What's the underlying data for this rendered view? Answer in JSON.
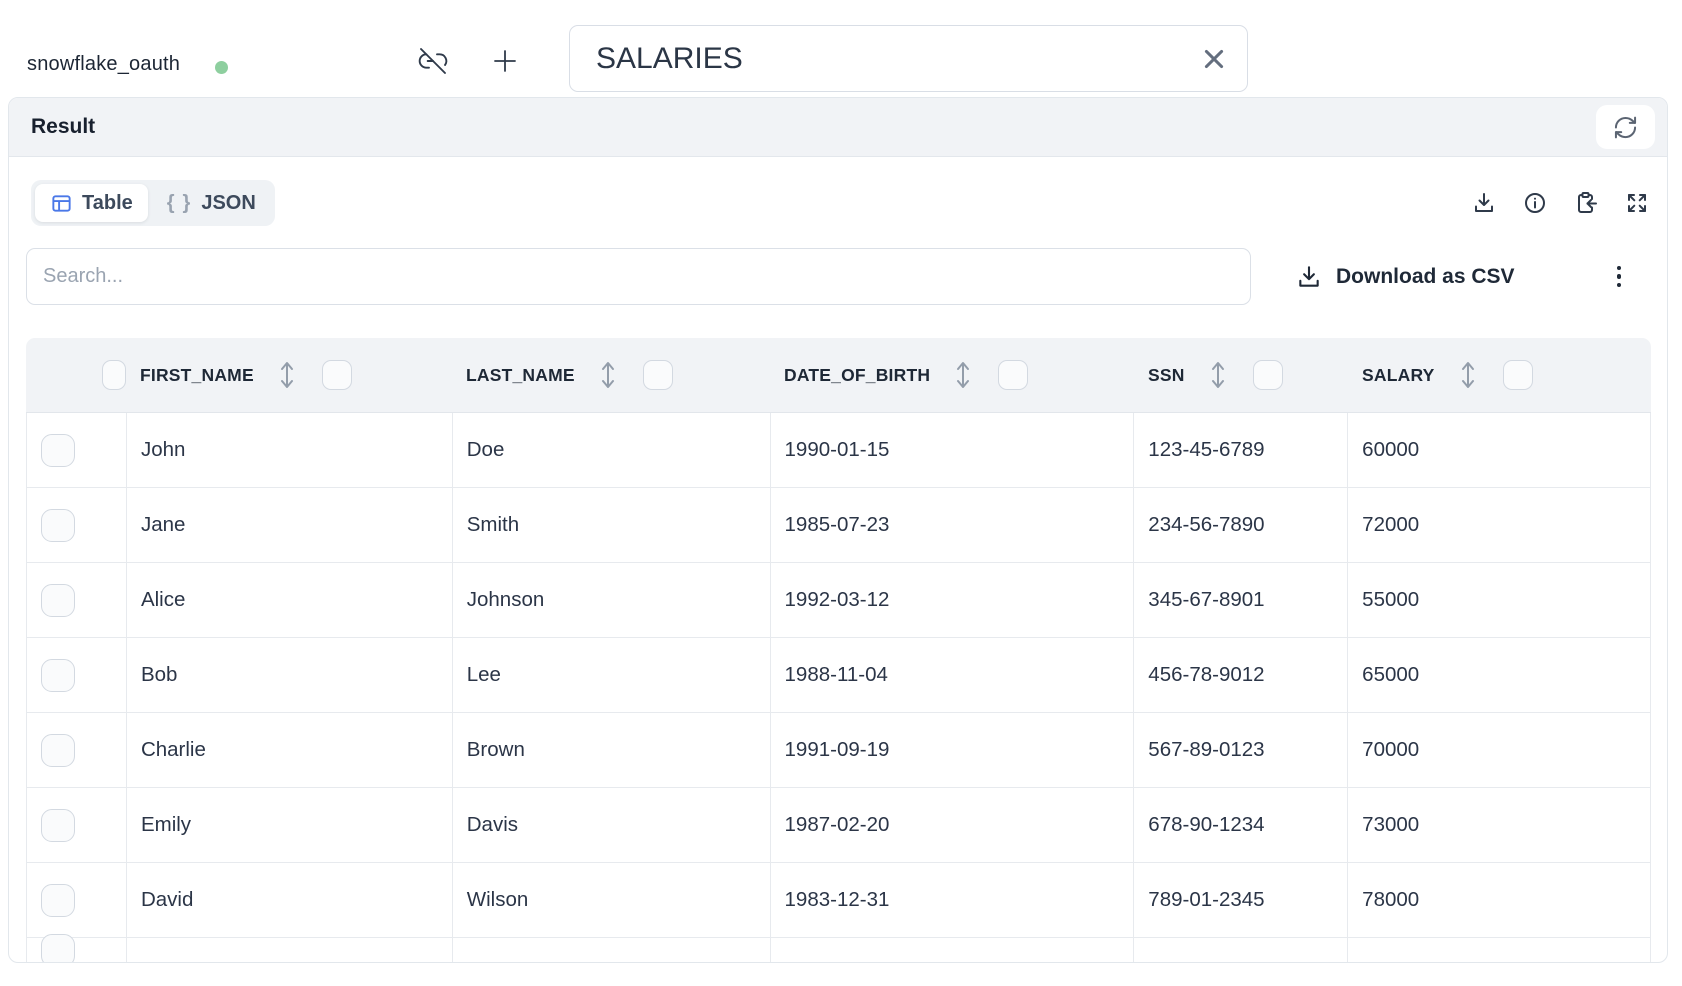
{
  "topbar": {
    "connection_name": "snowflake_oauth",
    "table_name_value": "SALARIES"
  },
  "result": {
    "title": "Result",
    "tab_table": "Table",
    "tab_json": "JSON",
    "search_placeholder": "Search...",
    "download_csv": "Download as CSV"
  },
  "table": {
    "columns": [
      "FIRST_NAME",
      "LAST_NAME",
      "DATE_OF_BIRTH",
      "SSN",
      "SALARY"
    ],
    "rows": [
      [
        "John",
        "Doe",
        "1990-01-15",
        "123-45-6789",
        "60000"
      ],
      [
        "Jane",
        "Smith",
        "1985-07-23",
        "234-56-7890",
        "72000"
      ],
      [
        "Alice",
        "Johnson",
        "1992-03-12",
        "345-67-8901",
        "55000"
      ],
      [
        "Bob",
        "Lee",
        "1988-11-04",
        "456-78-9012",
        "65000"
      ],
      [
        "Charlie",
        "Brown",
        "1991-09-19",
        "567-89-0123",
        "70000"
      ],
      [
        "Emily",
        "Davis",
        "1987-02-20",
        "678-90-1234",
        "73000"
      ],
      [
        "David",
        "Wilson",
        "1983-12-31",
        "789-01-2345",
        "78000"
      ]
    ]
  },
  "colors": {
    "accent_blue": "#4a78e8",
    "status_green": "#8ecf9f",
    "header_bg": "#f1f3f6",
    "border_light": "#e7eaee",
    "text_dark": "#1f2937"
  }
}
